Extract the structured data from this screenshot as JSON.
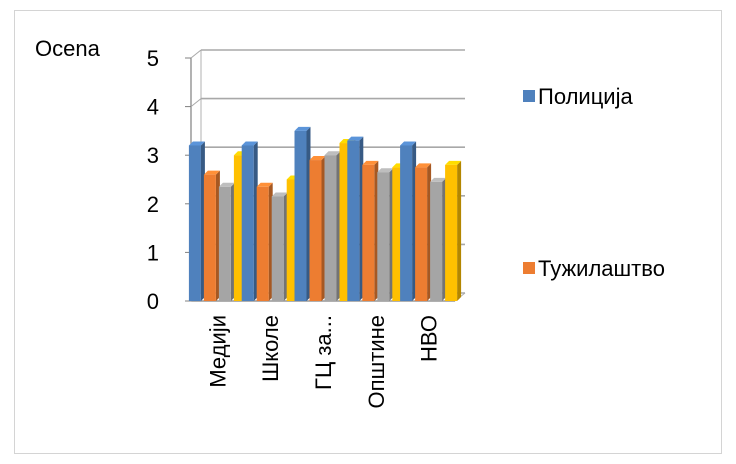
{
  "chart_data": {
    "type": "bar",
    "ylabel": "Ocena",
    "categories": [
      "Медији",
      "Школе",
      "ГЦ за...",
      "Општине",
      "НВО"
    ],
    "ylim": [
      0,
      5
    ],
    "yticks": [
      0,
      1,
      2,
      3,
      4,
      5
    ],
    "grid": true,
    "legend_position": "right",
    "series": [
      {
        "name": "Полиција",
        "color": "#4f81bd",
        "values": [
          3.2,
          3.2,
          3.5,
          3.3,
          3.2
        ]
      },
      {
        "name": "Тужилаштво",
        "color": "#ed7d31",
        "values": [
          2.6,
          2.35,
          2.9,
          2.8,
          2.75
        ]
      },
      {
        "name": "",
        "color": "#a5a5a5",
        "values": [
          2.35,
          2.15,
          3.0,
          2.65,
          2.45
        ]
      },
      {
        "name": "",
        "color": "#ffc000",
        "values": [
          3.0,
          2.5,
          3.25,
          2.75,
          2.8
        ]
      }
    ]
  }
}
